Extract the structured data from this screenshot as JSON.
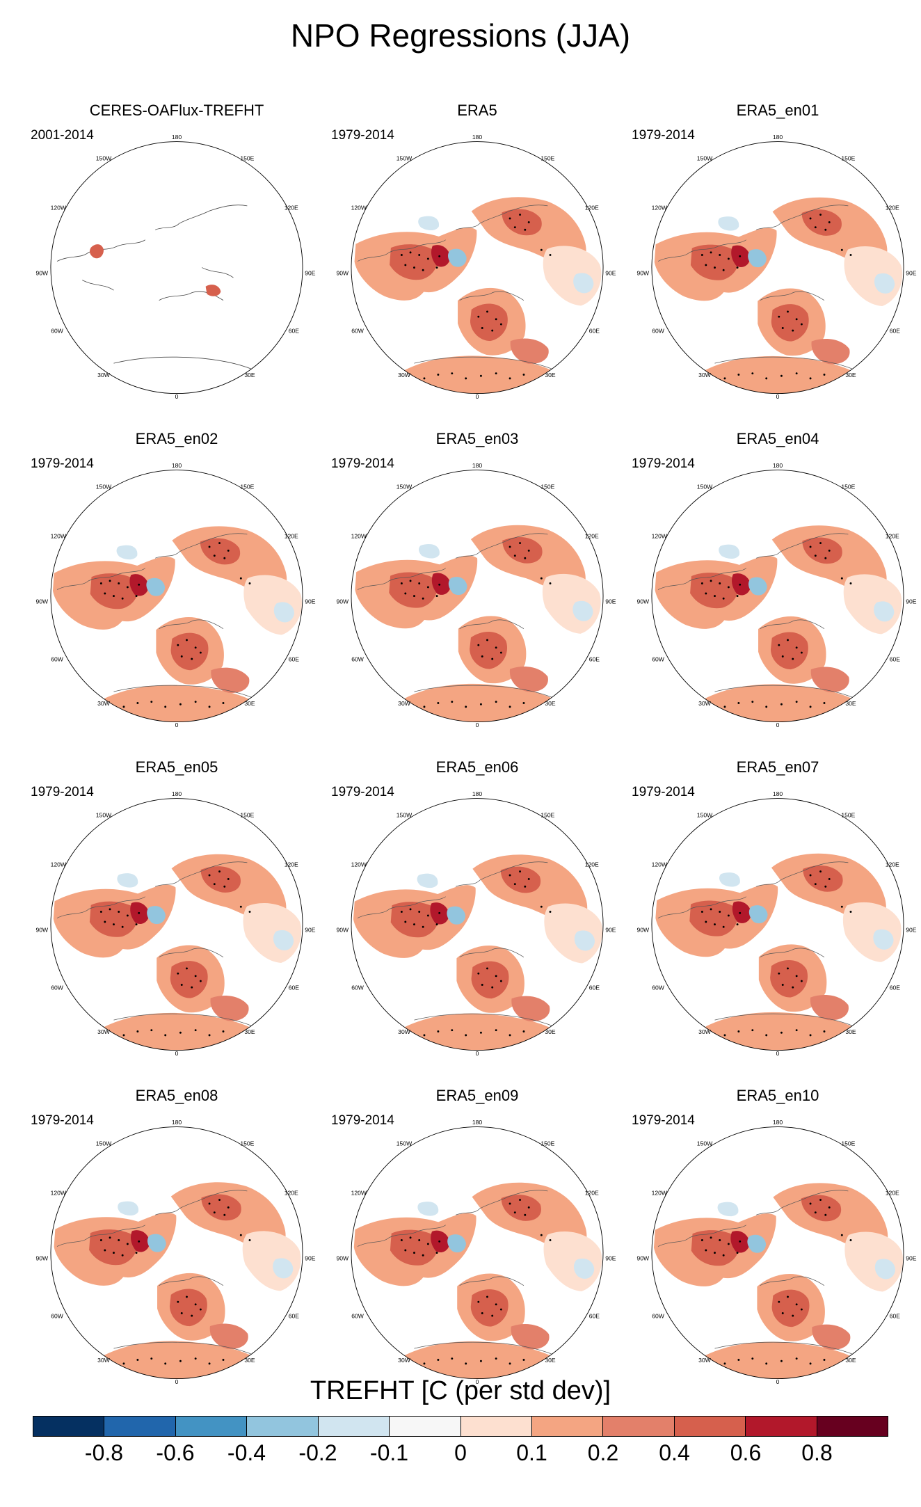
{
  "figure_title": "NPO Regressions (JJA)",
  "colorbar": {
    "title": "TREFHT [C (per std dev)]",
    "tick_labels": [
      "-0.8",
      "-0.6",
      "-0.4",
      "-0.2",
      "-0.1",
      "0",
      "0.1",
      "0.2",
      "0.4",
      "0.6",
      "0.8"
    ],
    "colors": [
      "#053061",
      "#2166ac",
      "#4393c3",
      "#92c5de",
      "#d1e5f0",
      "#f7f7f7",
      "#fde0d0",
      "#f4a582",
      "#e3806a",
      "#d6604d",
      "#b2182b",
      "#67001f"
    ]
  },
  "longitude_labels": [
    "180",
    "150E",
    "120E",
    "90E",
    "60E",
    "30E",
    "0",
    "30W",
    "60W",
    "90W",
    "120W",
    "150W"
  ],
  "chart_data": {
    "type": "polar-stereographic filled-contour map grid",
    "variable": "TREFHT",
    "units": "C (per std dev)",
    "season": "JJA",
    "contour_levels": [
      -0.8,
      -0.6,
      -0.4,
      -0.2,
      -0.1,
      0,
      0.1,
      0.2,
      0.4,
      0.6,
      0.8
    ],
    "panels": [
      {
        "title": "CERES-OAFlux-TREFHT",
        "period": "2001-2014",
        "field": "mostly missing"
      },
      {
        "title": "ERA5",
        "period": "1979-2014",
        "field": "full"
      },
      {
        "title": "ERA5_en01",
        "period": "1979-2014",
        "field": "full"
      },
      {
        "title": "ERA5_en02",
        "period": "1979-2014",
        "field": "full"
      },
      {
        "title": "ERA5_en03",
        "period": "1979-2014",
        "field": "full"
      },
      {
        "title": "ERA5_en04",
        "period": "1979-2014",
        "field": "full"
      },
      {
        "title": "ERA5_en05",
        "period": "1979-2014",
        "field": "full"
      },
      {
        "title": "ERA5_en06",
        "period": "1979-2014",
        "field": "full"
      },
      {
        "title": "ERA5_en07",
        "period": "1979-2014",
        "field": "full"
      },
      {
        "title": "ERA5_en08",
        "period": "1979-2014",
        "field": "full"
      },
      {
        "title": "ERA5_en09",
        "period": "1979-2014",
        "field": "full"
      },
      {
        "title": "ERA5_en10",
        "period": "1979-2014",
        "field": "full"
      }
    ]
  }
}
